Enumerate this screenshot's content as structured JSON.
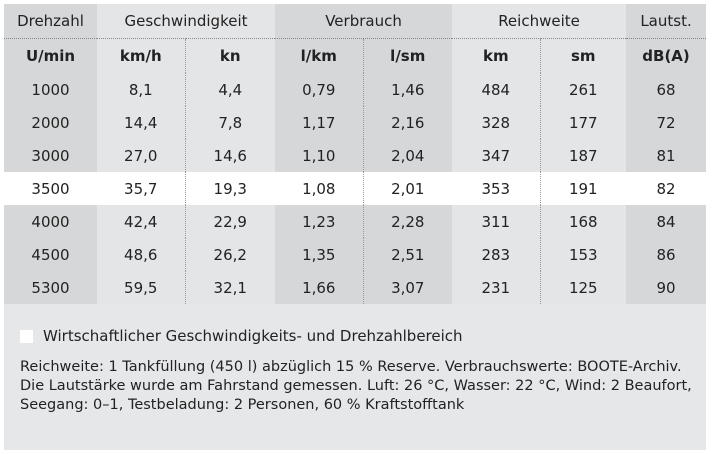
{
  "header": {
    "groups": [
      "Drehzahl",
      "Geschwindigkeit",
      "Verbrauch",
      "Reichweite",
      "Lautst."
    ],
    "units": [
      "U/min",
      "km/h",
      "kn",
      "l/km",
      "l/sm",
      "km",
      "sm",
      "dB(A)"
    ]
  },
  "rows": [
    [
      "1000",
      "8,1",
      "4,4",
      "0,79",
      "1,46",
      "484",
      "261",
      "68"
    ],
    [
      "2000",
      "14,4",
      "7,8",
      "1,17",
      "2,16",
      "328",
      "177",
      "72"
    ],
    [
      "3000",
      "27,0",
      "14,6",
      "1,10",
      "2,04",
      "347",
      "187",
      "81"
    ],
    [
      "3500",
      "35,7",
      "19,3",
      "1,08",
      "2,01",
      "353",
      "191",
      "82"
    ],
    [
      "4000",
      "42,4",
      "22,9",
      "1,23",
      "2,28",
      "311",
      "168",
      "84"
    ],
    [
      "4500",
      "48,6",
      "26,2",
      "1,35",
      "2,51",
      "283",
      "153",
      "86"
    ],
    [
      "5300",
      "59,5",
      "32,1",
      "1,66",
      "3,07",
      "231",
      "125",
      "90"
    ]
  ],
  "highlight_row": "3500",
  "legend": "Wirtschaftlicher Geschwindigkeits- und Drehzahlbereich",
  "notes": [
    "Reichweite: 1 Tankfüllung (450 l) abzüglich 15 % Reserve. Verbrauchswerte: BOOTE-Archiv.",
    "Die Lautstärke wurde am Fahrstand gemessen. Luft: 26 °C, Wasser: 22 °C, Wind: 2 Beaufort,",
    "Seegang: 0–1, Testbeladung: 2 Personen, 60 % Kraftstofftank"
  ]
}
